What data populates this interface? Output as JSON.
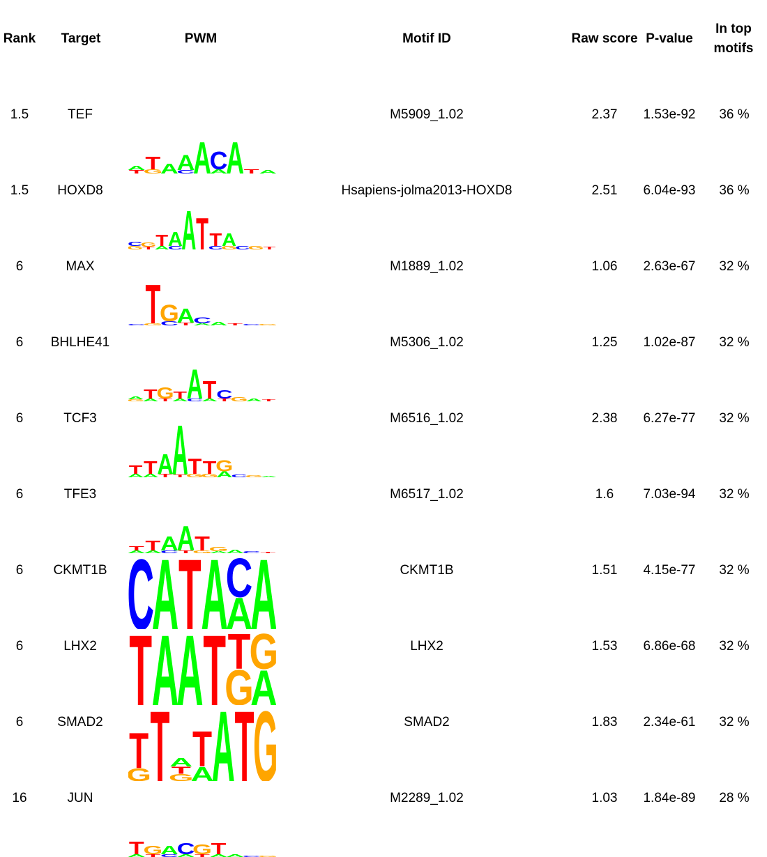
{
  "header": {
    "rank": "Rank",
    "target": "Target",
    "pwm": "PWM",
    "motif_id": "Motif ID",
    "raw_score": "Raw score",
    "p_value": "P-value",
    "in_top_line1": "In top",
    "in_top_line2": "motifs"
  },
  "colors": {
    "A": "#00ff00",
    "C": "#0000ff",
    "G": "#ffa500",
    "T": "#ff0000"
  },
  "rows": [
    {
      "rank": "1.5",
      "target": "TEF",
      "motif_id": "M5909_1.02",
      "raw_score": "2.37",
      "p_value": "1.53e-92",
      "in_top": "36 %",
      "logo": [
        [
          [
            "A",
            0.06
          ],
          [
            "T",
            0.05
          ]
        ],
        [
          [
            "T",
            0.18
          ],
          [
            "G",
            0.06
          ]
        ],
        [
          [
            "A",
            0.14
          ]
        ],
        [
          [
            "A",
            0.22
          ],
          [
            "C",
            0.05
          ]
        ],
        [
          [
            "A",
            0.45
          ]
        ],
        [
          [
            "C",
            0.25
          ],
          [
            "A",
            0.06
          ]
        ],
        [
          [
            "A",
            0.45
          ]
        ],
        [
          [
            "T",
            0.06
          ]
        ],
        [
          [
            "A",
            0.05
          ]
        ]
      ]
    },
    {
      "rank": "1.5",
      "target": "HOXD8",
      "motif_id": "Hsapiens-jolma2013-HOXD8",
      "raw_score": "2.51",
      "p_value": "6.04e-93",
      "in_top": "36 %",
      "logo": [
        [
          [
            "C",
            0.06
          ],
          [
            "G",
            0.05
          ]
        ],
        [
          [
            "G",
            0.06
          ],
          [
            "T",
            0.04
          ]
        ],
        [
          [
            "T",
            0.16
          ],
          [
            "A",
            0.05
          ]
        ],
        [
          [
            "A",
            0.2
          ],
          [
            "C",
            0.05
          ]
        ],
        [
          [
            "A",
            0.55
          ]
        ],
        [
          [
            "T",
            0.45
          ]
        ],
        [
          [
            "T",
            0.18
          ],
          [
            "C",
            0.05
          ]
        ],
        [
          [
            "A",
            0.18
          ],
          [
            "G",
            0.05
          ]
        ],
        [
          [
            "C",
            0.05
          ]
        ],
        [
          [
            "G",
            0.05
          ]
        ],
        [
          [
            "T",
            0.04
          ]
        ]
      ]
    },
    {
      "rank": "6",
      "target": "MAX",
      "motif_id": "M1889_1.02",
      "raw_score": "1.06",
      "p_value": "2.63e-67",
      "in_top": "32 %",
      "logo": [
        [
          [
            "C",
            0.02
          ]
        ],
        [
          [
            "T",
            0.55
          ],
          [
            "G",
            0.03
          ]
        ],
        [
          [
            "G",
            0.24
          ],
          [
            "C",
            0.06
          ]
        ],
        [
          [
            "A",
            0.2
          ],
          [
            "T",
            0.04
          ]
        ],
        [
          [
            "C",
            0.08
          ],
          [
            "A",
            0.03
          ]
        ],
        [
          [
            "A",
            0.05
          ]
        ],
        [
          [
            "T",
            0.03
          ]
        ],
        [
          [
            "C",
            0.02
          ]
        ],
        [
          [
            "G",
            0.02
          ]
        ]
      ]
    },
    {
      "rank": "6",
      "target": "BHLHE41",
      "motif_id": "M5306_1.02",
      "raw_score": "1.25",
      "p_value": "1.02e-87",
      "in_top": "32 %",
      "logo": [
        [
          [
            "A",
            0.04
          ],
          [
            "G",
            0.03
          ]
        ],
        [
          [
            "T",
            0.13
          ],
          [
            "A",
            0.04
          ]
        ],
        [
          [
            "G",
            0.16
          ],
          [
            "T",
            0.04
          ]
        ],
        [
          [
            "T",
            0.1
          ],
          [
            "A",
            0.04
          ]
        ],
        [
          [
            "A",
            0.42
          ],
          [
            "C",
            0.04
          ]
        ],
        [
          [
            "T",
            0.25
          ],
          [
            "A",
            0.04
          ]
        ],
        [
          [
            "C",
            0.12
          ],
          [
            "T",
            0.04
          ]
        ],
        [
          [
            "G",
            0.06
          ]
        ],
        [
          [
            "A",
            0.04
          ]
        ],
        [
          [
            "T",
            0.03
          ]
        ]
      ]
    },
    {
      "rank": "6",
      "target": "TCF3",
      "motif_id": "M6516_1.02",
      "raw_score": "2.38",
      "p_value": "6.27e-77",
      "in_top": "32 %",
      "logo": [
        [
          [
            "T",
            0.12
          ],
          [
            "A",
            0.05
          ]
        ],
        [
          [
            "T",
            0.18
          ],
          [
            "A",
            0.05
          ]
        ],
        [
          [
            "A",
            0.28
          ],
          [
            "T",
            0.05
          ]
        ],
        [
          [
            "A",
            0.7
          ],
          [
            "T",
            0.04
          ]
        ],
        [
          [
            "T",
            0.22
          ],
          [
            "G",
            0.05
          ]
        ],
        [
          [
            "T",
            0.18
          ],
          [
            "G",
            0.05
          ]
        ],
        [
          [
            "G",
            0.16
          ],
          [
            "A",
            0.08
          ]
        ],
        [
          [
            "C",
            0.04
          ]
        ],
        [
          [
            "G",
            0.03
          ]
        ],
        [
          [
            "A",
            0.02
          ]
        ]
      ]
    },
    {
      "rank": "6",
      "target": "TFE3",
      "motif_id": "M6517_1.02",
      "raw_score": "1.6",
      "p_value": "7.03e-94",
      "in_top": "32 %",
      "logo": [
        [
          [
            "T",
            0.06
          ],
          [
            "A",
            0.04
          ]
        ],
        [
          [
            "T",
            0.14
          ],
          [
            "A",
            0.04
          ]
        ],
        [
          [
            "A",
            0.2
          ],
          [
            "C",
            0.04
          ]
        ],
        [
          [
            "A",
            0.35
          ],
          [
            "T",
            0.04
          ]
        ],
        [
          [
            "T",
            0.2
          ],
          [
            "G",
            0.04
          ]
        ],
        [
          [
            "G",
            0.06
          ],
          [
            "A",
            0.03
          ]
        ],
        [
          [
            "A",
            0.05
          ]
        ],
        [
          [
            "C",
            0.03
          ]
        ],
        [
          [
            "T",
            0.02
          ]
        ]
      ]
    },
    {
      "rank": "6",
      "target": "CKMT1B",
      "motif_id": "CKMT1B",
      "raw_score": "1.51",
      "p_value": "4.15e-77",
      "in_top": "32 %",
      "logo": [
        [
          [
            "C",
            1.0
          ]
        ],
        [
          [
            "A",
            1.0
          ]
        ],
        [
          [
            "T",
            1.0
          ]
        ],
        [
          [
            "A",
            1.0
          ]
        ],
        [
          [
            "A",
            0.45
          ],
          [
            "C",
            0.55
          ]
        ],
        [
          [
            "A",
            1.0
          ]
        ]
      ]
    },
    {
      "rank": "6",
      "target": "LHX2",
      "motif_id": "LHX2",
      "raw_score": "1.53",
      "p_value": "6.86e-68",
      "in_top": "32 %",
      "logo": [
        [
          [
            "T",
            1.0
          ]
        ],
        [
          [
            "A",
            1.0
          ]
        ],
        [
          [
            "A",
            1.0
          ]
        ],
        [
          [
            "T",
            1.0
          ]
        ],
        [
          [
            "G",
            0.5
          ],
          [
            "T",
            0.5
          ]
        ],
        [
          [
            "A",
            0.5
          ],
          [
            "G",
            0.5
          ]
        ]
      ]
    },
    {
      "rank": "6",
      "target": "SMAD2",
      "motif_id": "SMAD2",
      "raw_score": "1.83",
      "p_value": "2.34e-61",
      "in_top": "32 %",
      "logo": [
        [
          [
            "G",
            0.18
          ],
          [
            "T",
            0.5
          ]
        ],
        [
          [
            "T",
            1.0
          ]
        ],
        [
          [
            "A",
            0.12
          ],
          [
            "G",
            0.1
          ],
          [
            "T",
            0.1
          ]
        ],
        [
          [
            "A",
            0.2
          ],
          [
            "T",
            0.5
          ]
        ],
        [
          [
            "A",
            1.0
          ]
        ],
        [
          [
            "T",
            1.0
          ]
        ],
        [
          [
            "G",
            1.0
          ]
        ]
      ]
    },
    {
      "rank": "16",
      "target": "JUN",
      "motif_id": "M2289_1.02",
      "raw_score": "1.03",
      "p_value": "1.84e-89",
      "in_top": "28 %",
      "logo": [
        [
          [
            "A",
            0.04
          ],
          [
            "T",
            0.18
          ]
        ],
        [
          [
            "G",
            0.12
          ],
          [
            "T",
            0.04
          ]
        ],
        [
          [
            "A",
            0.12
          ],
          [
            "C",
            0.04
          ]
        ],
        [
          [
            "C",
            0.16
          ],
          [
            "A",
            0.04
          ]
        ],
        [
          [
            "G",
            0.14
          ],
          [
            "T",
            0.04
          ]
        ],
        [
          [
            "T",
            0.16
          ],
          [
            "A",
            0.04
          ]
        ],
        [
          [
            "A",
            0.04
          ]
        ],
        [
          [
            "C",
            0.02
          ]
        ],
        [
          [
            "G",
            0.02
          ]
        ]
      ]
    }
  ]
}
